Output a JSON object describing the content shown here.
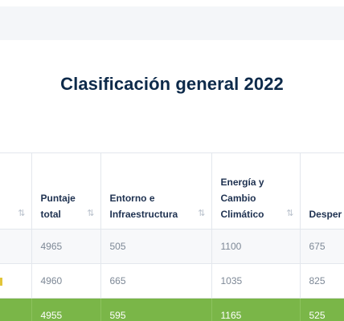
{
  "page": {
    "title": "Clasificación general 2022"
  },
  "table": {
    "headers": [
      {
        "line1": "",
        "line2": "",
        "line3": ""
      },
      {
        "line1": "Puntaje",
        "line2": "total",
        "line3": ""
      },
      {
        "line1": "Entorno e",
        "line2": "Infraestructura",
        "line3": ""
      },
      {
        "line1": "Energía y",
        "line2": "Cambio",
        "line3": "Climático"
      },
      {
        "line1": "Desper",
        "line2": "",
        "line3": ""
      }
    ],
    "sort_icon": "⇅",
    "rows": [
      {
        "cells": [
          "",
          "4965",
          "505",
          "1100",
          "675"
        ],
        "highlight": false
      },
      {
        "cells": [
          "",
          "4960",
          "665",
          "1035",
          "825"
        ],
        "highlight": false
      },
      {
        "cells": [
          "",
          "4955",
          "595",
          "1165",
          "525"
        ],
        "highlight": true
      }
    ]
  },
  "colors": {
    "title": "#0d2a4a",
    "highlight_row": "#7ab648",
    "row_marker": "#e2c53a"
  }
}
